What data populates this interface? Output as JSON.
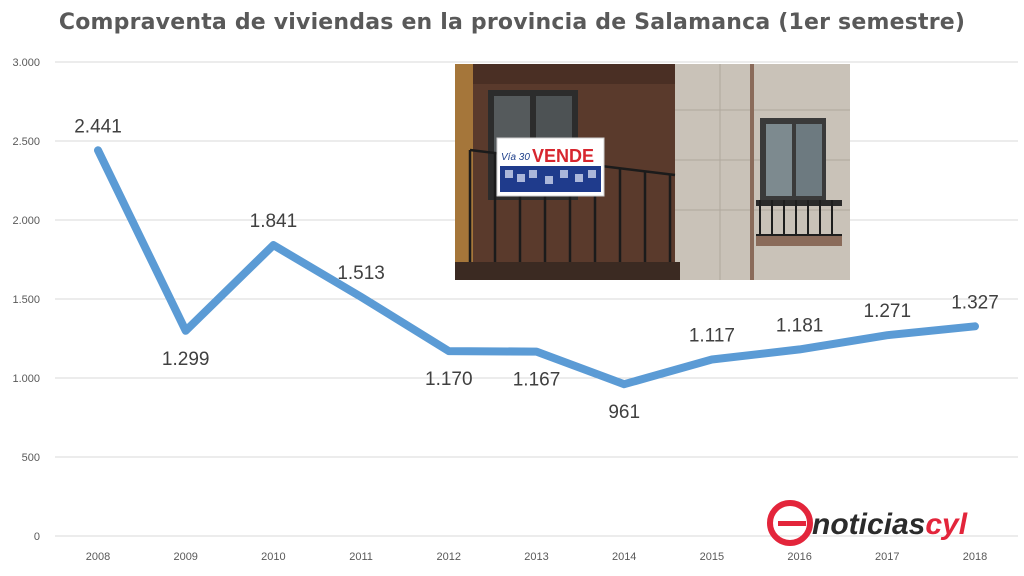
{
  "chart_data": {
    "type": "line",
    "title": "Compraventa de viviendas en la provincia de Salamanca (1er semestre)",
    "xlabel": "",
    "ylabel": "",
    "categories": [
      "2008",
      "2009",
      "2010",
      "2011",
      "2012",
      "2013",
      "2014",
      "2015",
      "2016",
      "2017",
      "2018"
    ],
    "values": [
      2441,
      1299,
      1841,
      1513,
      1170,
      1167,
      961,
      1117,
      1181,
      1271,
      1327
    ],
    "data_labels": [
      "2.441",
      "1.299",
      "1.841",
      "1.513",
      "1.170",
      "1.167",
      "961",
      "1.117",
      "1.181",
      "1.271",
      "1.327"
    ],
    "ylim": [
      0,
      3000
    ],
    "yticks": [
      0,
      500,
      1000,
      1500,
      2000,
      2500,
      3000
    ],
    "ytick_labels": [
      "0",
      "500",
      "1.000",
      "1.500",
      "2.000",
      "2.500",
      "3.000"
    ],
    "grid": true,
    "legend": "none",
    "series_color": "#5b9bd5"
  },
  "photo": {
    "sign_text": "VENDE",
    "sign_brand": "Vía 30"
  },
  "logo": {
    "text_main": "noticias",
    "text_accent": "cyl",
    "accent_color": "#e3253b"
  }
}
